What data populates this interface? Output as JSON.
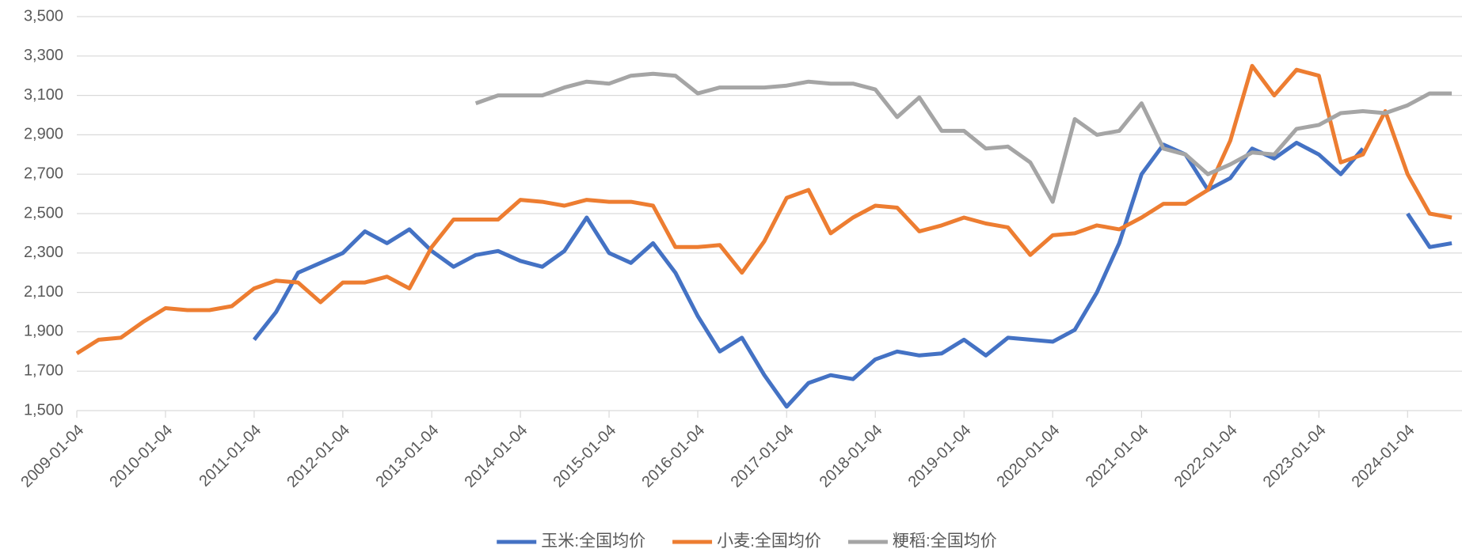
{
  "chart_data": {
    "type": "line",
    "x": [
      "2009-01-04",
      "2009-04-04",
      "2009-07-04",
      "2009-10-04",
      "2010-01-04",
      "2010-04-04",
      "2010-07-04",
      "2010-10-04",
      "2011-01-04",
      "2011-04-04",
      "2011-07-04",
      "2011-10-04",
      "2012-01-04",
      "2012-04-04",
      "2012-07-04",
      "2012-10-04",
      "2013-01-04",
      "2013-04-04",
      "2013-07-04",
      "2013-10-04",
      "2014-01-04",
      "2014-04-04",
      "2014-07-04",
      "2014-10-04",
      "2015-01-04",
      "2015-04-04",
      "2015-07-04",
      "2015-10-04",
      "2016-01-04",
      "2016-04-04",
      "2016-07-04",
      "2016-10-04",
      "2017-01-04",
      "2017-04-04",
      "2017-07-04",
      "2017-10-04",
      "2018-01-04",
      "2018-04-04",
      "2018-07-04",
      "2018-10-04",
      "2019-01-04",
      "2019-04-04",
      "2019-07-04",
      "2019-10-04",
      "2020-01-04",
      "2020-04-04",
      "2020-07-04",
      "2020-10-04",
      "2021-01-04",
      "2021-04-04",
      "2021-07-04",
      "2021-10-04",
      "2022-01-04",
      "2022-04-04",
      "2022-07-04",
      "2022-10-04",
      "2023-01-04",
      "2023-04-04",
      "2023-07-04",
      "2023-10-04",
      "2024-01-04",
      "2024-04-04",
      "2024-07-04"
    ],
    "series": [
      {
        "name": "玉米:全国均价",
        "color": "#4472c4",
        "values": [
          null,
          null,
          null,
          null,
          null,
          null,
          null,
          null,
          1860,
          2000,
          2200,
          2250,
          2300,
          2410,
          2350,
          2420,
          2310,
          2230,
          2290,
          2310,
          2260,
          2230,
          2310,
          2480,
          2300,
          2250,
          2350,
          2200,
          1980,
          1800,
          1870,
          1680,
          1520,
          1640,
          1680,
          1660,
          1760,
          1800,
          1780,
          1790,
          1860,
          1780,
          1870,
          1860,
          1850,
          1910,
          2100,
          2350,
          2700,
          2850,
          2800,
          2620,
          2680,
          2830,
          2780,
          2860,
          2800,
          2700,
          2830,
          null,
          2500,
          2330,
          2350
        ]
      },
      {
        "name": "小麦:全国均价",
        "color": "#ed7d31",
        "values": [
          1790,
          1860,
          1870,
          1950,
          2020,
          2010,
          2010,
          2030,
          2120,
          2160,
          2150,
          2050,
          2150,
          2150,
          2180,
          2120,
          2330,
          2470,
          2470,
          2470,
          2570,
          2560,
          2540,
          2570,
          2560,
          2560,
          2540,
          2330,
          2330,
          2340,
          2200,
          2360,
          2580,
          2620,
          2400,
          2480,
          2540,
          2530,
          2410,
          2440,
          2480,
          2450,
          2430,
          2290,
          2390,
          2400,
          2440,
          2420,
          2480,
          2550,
          2550,
          2620,
          2870,
          3250,
          3100,
          3230,
          3200,
          2760,
          2800,
          3020,
          2700,
          2500,
          2480
        ]
      },
      {
        "name": "粳稻:全国均价",
        "color": "#a5a5a5",
        "values": [
          null,
          null,
          null,
          null,
          null,
          null,
          null,
          null,
          null,
          null,
          null,
          null,
          null,
          null,
          null,
          null,
          null,
          null,
          3060,
          3100,
          3100,
          3100,
          3140,
          3170,
          3160,
          3200,
          3210,
          3200,
          3110,
          3140,
          3140,
          3140,
          3150,
          3170,
          3160,
          3160,
          3130,
          2990,
          3090,
          2920,
          2920,
          2830,
          2840,
          2760,
          2560,
          2980,
          2900,
          2920,
          3060,
          2830,
          2800,
          2700,
          2750,
          2810,
          2800,
          2930,
          2950,
          3010,
          3020,
          3010,
          3050,
          3110,
          3110
        ]
      }
    ],
    "xlim": [
      "2009-01-04",
      "2024-08-15"
    ],
    "xticks": [
      "2009-01-04",
      "2010-01-04",
      "2011-01-04",
      "2012-01-04",
      "2013-01-04",
      "2014-01-04",
      "2015-01-04",
      "2016-01-04",
      "2017-01-04",
      "2018-01-04",
      "2019-01-04",
      "2020-01-04",
      "2021-01-04",
      "2022-01-04",
      "2023-01-04",
      "2024-01-04"
    ],
    "ylim": [
      1500,
      3500
    ],
    "yticks": [
      {
        "value": 1500,
        "label": "1,500"
      },
      {
        "value": 1700,
        "label": "1,700"
      },
      {
        "value": 1900,
        "label": "1,900"
      },
      {
        "value": 2100,
        "label": "2,100"
      },
      {
        "value": 2300,
        "label": "2,300"
      },
      {
        "value": 2500,
        "label": "2,500"
      },
      {
        "value": 2700,
        "label": "2,700"
      },
      {
        "value": 2900,
        "label": "2,900"
      },
      {
        "value": 3100,
        "label": "3,100"
      },
      {
        "value": 3300,
        "label": "3,300"
      },
      {
        "value": 3500,
        "label": "3,500"
      }
    ],
    "grid": true,
    "legend": "bottom"
  }
}
